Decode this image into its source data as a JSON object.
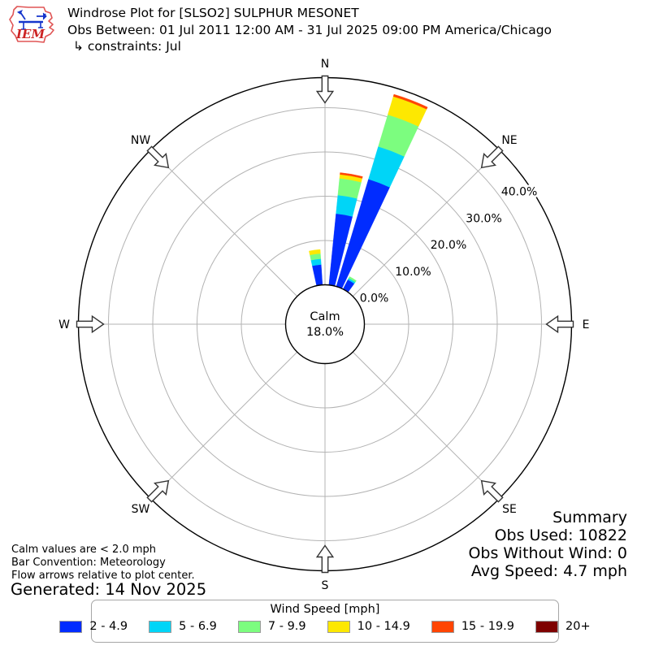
{
  "header": {
    "logo_text": "IEM",
    "title": "Windrose Plot for [SLSO2] SULPHUR MESONET",
    "subtitle": "Obs Between: 01 Jul 2011 12:00 AM - 31 Jul 2025 09:00 PM America/Chicago",
    "constraints": "↳ constraints: Jul"
  },
  "chart_data": {
    "type": "windrose",
    "units": "mph",
    "calm": {
      "label": "Calm",
      "value": "18.0%"
    },
    "rings": [
      {
        "value": 0,
        "label": "0.0%"
      },
      {
        "value": 10,
        "label": "10.0%"
      },
      {
        "value": 20,
        "label": "20.0%"
      },
      {
        "value": 30,
        "label": "30.0%"
      },
      {
        "value": 40,
        "label": "40.0%"
      }
    ],
    "rmax_pct": 46.8,
    "ring_label_azimuth_deg": 53,
    "grid_color": "#b3b3b3",
    "compass": [
      "N",
      "NE",
      "E",
      "SE",
      "S",
      "SW",
      "W",
      "NW"
    ],
    "speed_bins": [
      {
        "label": "2 - 4.9",
        "color": "#012cff"
      },
      {
        "label": "5 - 6.9",
        "color": "#00d5f7"
      },
      {
        "label": "7 - 9.9",
        "color": "#7cfd7f"
      },
      {
        "label": "10 - 14.9",
        "color": "#fde801"
      },
      {
        "label": "15 - 19.9",
        "color": "#ff4503"
      },
      {
        "label": "20+",
        "color": "#7e0100"
      }
    ],
    "bar_width_deg": 8.6,
    "directions": [
      {
        "center_deg": 352,
        "segments_pct": [
          4.6,
          1.3,
          1.2,
          0.9,
          0,
          0
        ]
      },
      {
        "center_deg": 10,
        "segments_pct": [
          16.2,
          4.2,
          3.8,
          0.9,
          0.4,
          0
        ]
      },
      {
        "center_deg": 21,
        "segments_pct": [
          25.3,
          7.7,
          7.5,
          4.3,
          0.5,
          0
        ]
      },
      {
        "center_deg": 31.5,
        "segments_pct": [
          2.4,
          0.4,
          0.4,
          0,
          0,
          0
        ]
      }
    ]
  },
  "legend": {
    "title": "Wind Speed [mph]"
  },
  "footnotes": {
    "line1": "Calm values are < 2.0 mph",
    "line2": "Bar Convention: Meteorology",
    "line3": "Flow arrows relative to plot center.",
    "generated": "Generated: 14 Nov 2025"
  },
  "summary": {
    "title": "Summary",
    "obs_used": "Obs Used: 10822",
    "obs_without_wind": "Obs Without Wind: 0",
    "avg_speed": "Avg Speed: 4.7 mph"
  }
}
